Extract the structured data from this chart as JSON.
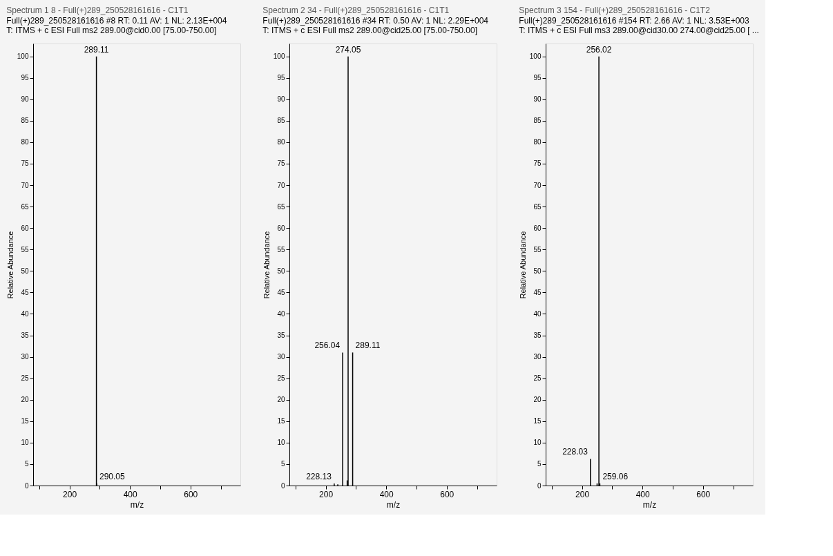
{
  "chart_data": [
    {
      "type": "bar",
      "title": "Spectrum  1  8 - Full(+)289_250528161616 - C1T1",
      "subtitle": "Full(+)289_250528161616 #8 RT: 0.11 AV: 1 NL: 2.13E+004\nT: ITMS + c ESI Full ms2 289.00@cid0.00 [75.00-750.00]",
      "xlabel": "m/z",
      "ylabel": "Relative Abundance",
      "x": [
        289.11,
        290.05
      ],
      "values": [
        100,
        0.5
      ],
      "color": "#000000",
      "annotations": [
        {
          "text": "289.11",
          "x": 289.11,
          "y": 100
        },
        {
          "text": "290.05",
          "x": 290.05,
          "y": 0.5
        }
      ],
      "xlim": [
        80,
        765
      ],
      "xticks": [
        {
          "value": 100,
          "label": null
        },
        200,
        {
          "value": 300,
          "label": null
        },
        400,
        {
          "value": 500,
          "label": null
        },
        600,
        {
          "value": 700,
          "label": null
        }
      ],
      "ylim": [
        0,
        103
      ],
      "yticks": [
        0,
        5,
        10,
        15,
        20,
        25,
        30,
        35,
        40,
        45,
        50,
        55,
        60,
        65,
        70,
        75,
        80,
        85,
        90,
        95,
        100
      ],
      "grid": false
    },
    {
      "type": "bar",
      "title": "Spectrum  2  34 - Full(+)289_250528161616 - C1T1",
      "subtitle": "Full(+)289_250528161616 #34 RT: 0.50 AV: 1 NL: 2.29E+004\nT: ITMS + c ESI Full ms2 289.00@cid25.00 [75.00-750.00]",
      "xlabel": "m/z",
      "ylabel": "Relative Abundance",
      "x": [
        228.13,
        240,
        256.04,
        271,
        274.05,
        289.11
      ],
      "values": [
        0.5,
        0.3,
        31,
        1.2,
        100,
        31
      ],
      "color": "#000000",
      "annotations": [
        {
          "text": "274.05",
          "x": 274.05,
          "y": 100
        },
        {
          "text": "256.04",
          "x": 256.04,
          "y": 31
        },
        {
          "text": "289.11",
          "x": 289.11,
          "y": 31
        },
        {
          "text": "228.13",
          "x": 228.13,
          "y": 0.5
        }
      ],
      "xlim": [
        80,
        765
      ],
      "xticks": [
        {
          "value": 100,
          "label": null
        },
        200,
        {
          "value": 300,
          "label": null
        },
        400,
        {
          "value": 500,
          "label": null
        },
        600,
        {
          "value": 700,
          "label": null
        }
      ],
      "ylim": [
        0,
        103
      ],
      "yticks": [
        0,
        5,
        10,
        15,
        20,
        25,
        30,
        35,
        40,
        45,
        50,
        55,
        60,
        65,
        70,
        75,
        80,
        85,
        90,
        95,
        100
      ],
      "grid": false
    },
    {
      "type": "bar",
      "title": "Spectrum  3  154 - Full(+)289_250528161616 - C1T2",
      "subtitle": "Full(+)289_250528161616 #154 RT: 2.66 AV: 1 NL: 3.53E+003\nT: ITMS + c ESI Full ms3 289.00@cid30.00 274.00@cid25.00 [ ...",
      "xlabel": "m/z",
      "ylabel": "Relative Abundance",
      "x": [
        228.03,
        250,
        256.02,
        259.06
      ],
      "values": [
        6.2,
        0.5,
        100,
        0.5
      ],
      "color": "#000000",
      "annotations": [
        {
          "text": "256.02",
          "x": 256.02,
          "y": 100
        },
        {
          "text": "228.03",
          "x": 228.03,
          "y": 6.2
        },
        {
          "text": "259.06",
          "x": 259.06,
          "y": 0.5
        }
      ],
      "xlim": [
        80,
        765
      ],
      "xticks": [
        {
          "value": 100,
          "label": null
        },
        200,
        {
          "value": 300,
          "label": null
        },
        400,
        {
          "value": 500,
          "label": null
        },
        600,
        {
          "value": 700,
          "label": null
        }
      ],
      "ylim": [
        0,
        103
      ],
      "yticks": [
        0,
        5,
        10,
        15,
        20,
        25,
        30,
        35,
        40,
        45,
        50,
        55,
        60,
        65,
        70,
        75,
        80,
        85,
        90,
        95,
        100
      ],
      "grid": false
    }
  ]
}
